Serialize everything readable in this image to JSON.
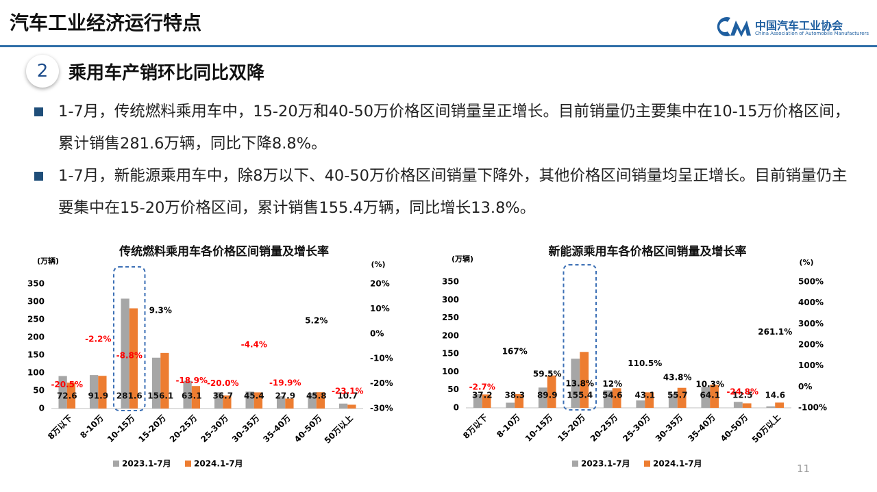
{
  "header": {
    "title": "汽车工业经济运行特点",
    "logo_name": "中国汽车工业协会",
    "logo_subtitle": "China Association of Automobile Manufacturers"
  },
  "section": {
    "number": "2",
    "title": "乘用车产销环比同比双降"
  },
  "bullets": [
    "1-7月，传统燃料乘用车中，15-20万和40-50万价格区间销量呈正增长。目前销量仍主要集中在10-15万价格区间，累计销售281.6万辆，同比下降8.8%。",
    "1-7月，新能源乘用车中，除8万以下、40-50万价格区间销量下降外，其他价格区间销量均呈正增长。目前销量仍主要集中在15-20万价格区间，累计销售155.4万辆，同比增长13.8%。"
  ],
  "page_number": "11",
  "chart_data": [
    {
      "type": "bar",
      "title": "传统燃料乘用车各价格区间销量及增长率",
      "y_label": "(万辆)",
      "y2_label": "(%)",
      "categories": [
        "8万以下",
        "8-10万",
        "10-15万",
        "15-20万",
        "20-25万",
        "25-30万",
        "30-35万",
        "35-40万",
        "40-50万",
        "50万以上"
      ],
      "series": [
        {
          "name": "2023.1-7月",
          "color": "#a6a6a6",
          "values": [
            91.3,
            94.0,
            308.8,
            142.8,
            77.8,
            45.9,
            47.5,
            34.8,
            43.5,
            13.9
          ]
        },
        {
          "name": "2024.1-7月",
          "color": "#ed7d31",
          "values": [
            72.6,
            91.9,
            281.6,
            156.1,
            63.1,
            36.7,
            45.4,
            27.9,
            45.8,
            10.7
          ]
        },
        {
          "axis": "y2",
          "color": "#000000",
          "negative_color": "#ff0000",
          "values": [
            -20.5,
            -2.2,
            -8.8,
            9.3,
            -18.9,
            -20.0,
            -4.4,
            -19.9,
            5.2,
            -23.1
          ],
          "value_labels": [
            "-20.5%",
            "-2.2%",
            "-8.8%",
            "9.3%",
            "-18.9%",
            "-20.0%",
            "-4.4%",
            "-19.9%",
            "5.2%",
            "-23.1%"
          ]
        }
      ],
      "ylim": [
        0,
        350
      ],
      "yticks": [
        0,
        50,
        100,
        150,
        200,
        250,
        300,
        350
      ],
      "y2lim": [
        -30,
        20
      ],
      "y2ticks": [
        {
          "value": -30,
          "label": "-30%"
        },
        {
          "value": -20,
          "label": "-20%"
        },
        {
          "value": -10,
          "label": "-10%"
        },
        {
          "value": 0,
          "label": "0%"
        },
        {
          "value": 10,
          "label": "10%"
        },
        {
          "value": 20,
          "label": "20%"
        }
      ]
    },
    {
      "type": "bar",
      "title": "新能源乘用车各价格区间销量及增长率",
      "y_label": "(万辆)",
      "y2_label": "(%)",
      "categories": [
        "8万以下",
        "8-10万",
        "10-15万",
        "15-20万",
        "20-25万",
        "25-30万",
        "30-35万",
        "35-40万",
        "40-50万",
        "50万以上"
      ],
      "series": [
        {
          "name": "2023.1-7月",
          "color": "#a6a6a6",
          "values": [
            38.2,
            14.3,
            56.4,
            136.6,
            48.8,
            20.5,
            38.7,
            58.1,
            16.6,
            4.0
          ]
        },
        {
          "name": "2024.1-7月",
          "color": "#ed7d31",
          "values": [
            37.2,
            38.3,
            89.9,
            155.4,
            54.6,
            43.1,
            55.7,
            64.1,
            12.5,
            14.6
          ]
        },
        {
          "axis": "y2",
          "color": "#000000",
          "negative_color": "#ff0000",
          "values": [
            -2.7,
            167,
            59.5,
            13.8,
            12,
            110.5,
            43.8,
            10.3,
            -24.8,
            261.1
          ],
          "value_labels": [
            "-2.7%",
            "167%",
            "59.5%",
            "13.8%",
            "12%",
            "110.5%",
            "43.8%",
            "10.3%",
            "-24.8%",
            "261.1%"
          ]
        }
      ],
      "ylim": [
        0,
        350
      ],
      "yticks": [
        0,
        50,
        100,
        150,
        200,
        250,
        300,
        350
      ],
      "y2lim": [
        -100,
        500
      ],
      "y2ticks": [
        {
          "value": -100,
          "label": "-100%"
        },
        {
          "value": 0,
          "label": "0%"
        },
        {
          "value": 100,
          "label": "100%"
        },
        {
          "value": 200,
          "label": "200%"
        },
        {
          "value": 300,
          "label": "300%"
        },
        {
          "value": 400,
          "label": "400%"
        },
        {
          "value": 500,
          "label": "500%"
        }
      ]
    }
  ]
}
